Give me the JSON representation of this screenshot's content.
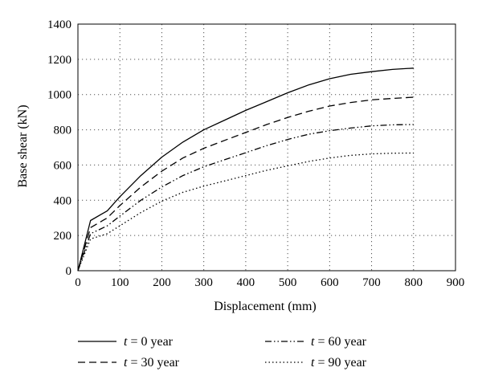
{
  "chart_data": {
    "type": "line",
    "xlabel": "Displacement (mm)",
    "ylabel": "Base shear (kN)",
    "xlim": [
      0,
      900
    ],
    "ylim": [
      0,
      1400
    ],
    "xticks": [
      0,
      100,
      200,
      300,
      400,
      500,
      600,
      700,
      800,
      900
    ],
    "yticks": [
      0,
      200,
      400,
      600,
      800,
      1000,
      1200,
      1400
    ],
    "grid": true,
    "legend_position": "bottom",
    "series": [
      {
        "name": "t = 0 year",
        "name_var": "t",
        "name_rest": " = 0 year",
        "style": "solid",
        "x": [
          0,
          30,
          70,
          100,
          150,
          200,
          250,
          300,
          350,
          400,
          450,
          500,
          550,
          600,
          650,
          700,
          750,
          800
        ],
        "y": [
          0,
          285,
          340,
          420,
          540,
          645,
          730,
          800,
          855,
          910,
          960,
          1010,
          1055,
          1090,
          1115,
          1130,
          1143,
          1150
        ]
      },
      {
        "name": "t = 30 year",
        "name_var": "t",
        "name_rest": " = 30 year",
        "style": "dashed",
        "x": [
          0,
          30,
          70,
          100,
          150,
          200,
          250,
          300,
          350,
          400,
          450,
          500,
          550,
          600,
          650,
          700,
          750,
          800
        ],
        "y": [
          0,
          245,
          300,
          370,
          475,
          565,
          640,
          695,
          740,
          785,
          830,
          870,
          905,
          935,
          955,
          970,
          978,
          985
        ]
      },
      {
        "name": "t = 60 year",
        "name_var": "t",
        "name_rest": " = 60 year",
        "style": "dash-dot-dot",
        "x": [
          0,
          30,
          70,
          100,
          150,
          200,
          250,
          300,
          350,
          400,
          450,
          500,
          550,
          600,
          650,
          700,
          750,
          800
        ],
        "y": [
          0,
          210,
          255,
          310,
          400,
          475,
          540,
          590,
          630,
          670,
          710,
          745,
          775,
          795,
          810,
          822,
          828,
          830
        ]
      },
      {
        "name": "t = 90 year",
        "name_var": "t",
        "name_rest": " = 90 year",
        "style": "dotted",
        "x": [
          0,
          30,
          70,
          100,
          150,
          200,
          250,
          300,
          350,
          400,
          450,
          500,
          550,
          600,
          650,
          700,
          750,
          800
        ],
        "y": [
          0,
          180,
          210,
          255,
          330,
          395,
          445,
          480,
          510,
          540,
          570,
          595,
          620,
          640,
          655,
          663,
          667,
          668
        ]
      }
    ]
  }
}
